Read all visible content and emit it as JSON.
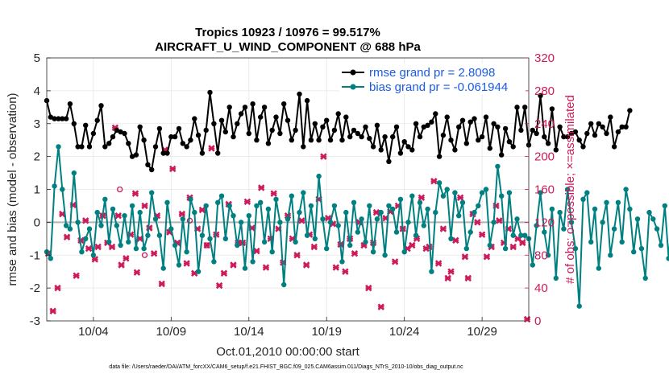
{
  "chart_data": {
    "type": "line",
    "title_line1": "Tropics 10923 / 10976 = 99.517%",
    "title_line2": "AIRCRAFT_U_WIND_COMPONENT @ 688 hPa",
    "xlabel": "Oct.01,2010 00:00:00 start",
    "ylabel_left": "rmse and bias (model - observation)",
    "ylabel_right": "# of obs: o=possible; ×=assimilated",
    "footer": "data file: /Users/raeder/DAI/ATM_forcXX/CAM6_setup/f.e21.FHIST_BGC.f09_025.CAM6assim.011/Diags_NTrS_2010-10/obs_diag_output.nc",
    "x_ticks": [
      {
        "day": 4,
        "label": "10/04"
      },
      {
        "day": 9,
        "label": "10/09"
      },
      {
        "day": 14,
        "label": "10/14"
      },
      {
        "day": 19,
        "label": "10/19"
      },
      {
        "day": 24,
        "label": "10/24"
      },
      {
        "day": 29,
        "label": "10/29"
      }
    ],
    "xlim_days": [
      1.0,
      32.0
    ],
    "ylim_left": [
      -3,
      5
    ],
    "yticks_left": [
      "-3",
      "-2",
      "-1",
      "0",
      "1",
      "2",
      "3",
      "4",
      "5"
    ],
    "ylim_right": [
      0,
      320
    ],
    "yticks_right": [
      "0",
      "40",
      "80",
      "120",
      "160",
      "200",
      "240",
      "280",
      "320"
    ],
    "legend_position": "top-right",
    "colors": {
      "rmse": "#000000",
      "bias": "#008080",
      "obs": "#cc1a5a",
      "zero": "#b3b3b3"
    },
    "series": [
      {
        "name": "rmse grand pr = 2.8098",
        "key": "rmse",
        "x_start_day": 1.0,
        "x_step_day": 0.25,
        "values": [
          3.7,
          3.2,
          3.15,
          3.15,
          3.15,
          3.15,
          3.6,
          3.0,
          2.3,
          2.3,
          2.95,
          2.3,
          2.7,
          3.1,
          3.55,
          2.3,
          2.4,
          2.6,
          2.8,
          2.75,
          2.7,
          2.4,
          2.0,
          2.05,
          2.9,
          2.5,
          1.75,
          1.6,
          2.3,
          2.85,
          2.1,
          2.1,
          2.6,
          2.6,
          2.85,
          2.4,
          2.3,
          2.5,
          3.15,
          2.65,
          2.1,
          2.8,
          3.95,
          3.0,
          2.1,
          3.1,
          2.75,
          3.5,
          2.6,
          3.0,
          3.3,
          3.5,
          2.7,
          3.6,
          2.5,
          3.2,
          3.5,
          2.4,
          2.8,
          3.2,
          2.7,
          3.6,
          3.1,
          2.5,
          2.8,
          3.9,
          2.3,
          3.7,
          2.5,
          3.0,
          2.5,
          2.9,
          3.1,
          2.5,
          2.8,
          3.3,
          2.5,
          3.2,
          2.6,
          2.8,
          2.7,
          2.6,
          2.9,
          2.55,
          2.3,
          2.95,
          2.2,
          2.6,
          1.85,
          2.6,
          2.9,
          2.1,
          2.45,
          2.3,
          2.2,
          3.0,
          2.6,
          2.9,
          2.95,
          3.05,
          3.3,
          2.0,
          2.65,
          3.2,
          2.5,
          2.2,
          2.9,
          3.1,
          2.4,
          3.05,
          3.15,
          2.5,
          2.6,
          3.2,
          2.25,
          3.0,
          2.9,
          2.05,
          2.85,
          2.45,
          2.3,
          3.5,
          2.8,
          3.5,
          2.35,
          2.8,
          2.7,
          3.85,
          2.6,
          2.4,
          3.45,
          2.2,
          2.9,
          2.6,
          2.6,
          2.7,
          2.75,
          2.5,
          2.3,
          2.7,
          3.0,
          2.65,
          3.0,
          2.9,
          2.7,
          3.2,
          2.3,
          2.75,
          2.9,
          2.9,
          3.4
        ]
      },
      {
        "name": "bias grand pr = -0.061944",
        "key": "bias",
        "x_start_day": 1.0,
        "x_step_day": 0.25,
        "values": [
          -0.9,
          -1.1,
          1.1,
          2.3,
          1.0,
          -0.1,
          -0.2,
          1.5,
          0.0,
          -0.9,
          -0.5,
          -0.2,
          -1.0,
          0.3,
          -0.1,
          0.7,
          -0.6,
          0.4,
          -0.1,
          -0.7,
          0.2,
          -0.6,
          0.5,
          -0.8,
          0.3,
          -0.8,
          -0.4,
          0.9,
          0.1,
          -0.4,
          -1.4,
          0.6,
          -0.2,
          -0.7,
          -1.3,
          0.1,
          -0.9,
          0.7,
          0.3,
          -1.5,
          -0.4,
          0.5,
          -0.5,
          -1.2,
          0.6,
          0.8,
          -0.5,
          0.5,
          0.2,
          -0.7,
          0.0,
          -1.4,
          0.2,
          -1.2,
          0.5,
          0.6,
          -0.6,
          0.4,
          -0.9,
          0.7,
          0.0,
          -1.9,
          0.1,
          0.8,
          -0.6,
          0.3,
          0.9,
          -0.4,
          0.5,
          -0.5,
          1.4,
          0.1,
          -0.8,
          0.0,
          0.5,
          -0.1,
          -1.2,
          0.3,
          -0.7,
          0.6,
          -0.3,
          0.1,
          -0.6,
          0.5,
          -0.9,
          0.1,
          0.3,
          -1.0,
          0.5,
          0.4,
          -0.3,
          0.7,
          -0.9,
          0.0,
          0.8,
          -0.4,
          0.6,
          -0.1,
          0.4,
          -1.5,
          0.3,
          1.2,
          0.8,
          1.0,
          -0.5,
          0.9,
          0.2,
          0.6,
          -0.8,
          -0.3,
          0.3,
          0.5,
          0.9,
          1.0,
          -0.7,
          0.0,
          1.7,
          0.8,
          -0.8,
          0.9,
          -0.4,
          0.1,
          -0.4,
          -0.4,
          -0.5,
          -1.3,
          -0.1,
          0.9,
          -0.3,
          -1.0,
          0.4,
          -1.7,
          0.3,
          -0.2,
          1.0,
          0.0,
          -0.8,
          -2.55,
          0.7,
          0.9,
          -0.6,
          0.4,
          -1.4,
          0.0,
          0.6,
          -1.0,
          -0.2,
          0.6,
          -0.6,
          1.0,
          0.4,
          -0.9,
          0.1,
          -0.8,
          -1.7,
          0.3,
          0.1,
          -0.2,
          -0.7,
          0.5,
          -1.1,
          0.5,
          0.7,
          -0.5,
          0.3,
          0.1,
          1.3,
          1.0,
          0.7
        ]
      }
    ],
    "obs_assimilated": [
      {
        "day": 1.1,
        "count": 82
      },
      {
        "day": 1.4,
        "count": 12
      },
      {
        "day": 1.7,
        "count": 40
      },
      {
        "day": 2.0,
        "count": 130
      },
      {
        "day": 2.3,
        "count": 102
      },
      {
        "day": 2.7,
        "count": 141
      },
      {
        "day": 2.9,
        "count": 55
      },
      {
        "day": 3.2,
        "count": 98
      },
      {
        "day": 3.5,
        "count": 122
      },
      {
        "day": 3.7,
        "count": 88
      },
      {
        "day": 4.1,
        "count": 75
      },
      {
        "day": 4.3,
        "count": 90
      },
      {
        "day": 4.6,
        "count": 128
      },
      {
        "day": 4.9,
        "count": 95
      },
      {
        "day": 5.2,
        "count": 90
      },
      {
        "day": 5.4,
        "count": 235
      },
      {
        "day": 5.6,
        "count": 128
      },
      {
        "day": 5.8,
        "count": 68
      },
      {
        "day": 6.1,
        "count": 76
      },
      {
        "day": 6.4,
        "count": 105
      },
      {
        "day": 6.7,
        "count": 155
      },
      {
        "day": 6.8,
        "count": 59
      },
      {
        "day": 7.0,
        "count": 100
      },
      {
        "day": 7.3,
        "count": 140
      },
      {
        "day": 7.6,
        "count": 113
      },
      {
        "day": 7.9,
        "count": 82
      },
      {
        "day": 8.1,
        "count": 128
      },
      {
        "day": 8.4,
        "count": 45
      },
      {
        "day": 8.6,
        "count": 208
      },
      {
        "day": 8.9,
        "count": 108
      },
      {
        "day": 9.1,
        "count": 185
      },
      {
        "day": 9.4,
        "count": 95
      },
      {
        "day": 9.7,
        "count": 130
      },
      {
        "day": 10.0,
        "count": 70
      },
      {
        "day": 10.2,
        "count": 150
      },
      {
        "day": 10.5,
        "count": 58
      },
      {
        "day": 10.7,
        "count": 112
      },
      {
        "day": 11.0,
        "count": 135
      },
      {
        "day": 11.3,
        "count": 92
      },
      {
        "day": 11.6,
        "count": 210
      },
      {
        "day": 11.9,
        "count": 105
      },
      {
        "day": 12.1,
        "count": 43
      },
      {
        "day": 12.4,
        "count": 58
      },
      {
        "day": 12.7,
        "count": 142
      },
      {
        "day": 13.0,
        "count": 68
      },
      {
        "day": 13.3,
        "count": 95
      },
      {
        "day": 13.6,
        "count": 95
      },
      {
        "day": 13.9,
        "count": 145
      },
      {
        "day": 14.2,
        "count": 113
      },
      {
        "day": 14.5,
        "count": 85
      },
      {
        "day": 14.8,
        "count": 162
      },
      {
        "day": 15.1,
        "count": 65
      },
      {
        "day": 15.4,
        "count": 100
      },
      {
        "day": 15.6,
        "count": 155
      },
      {
        "day": 15.9,
        "count": 112
      },
      {
        "day": 16.2,
        "count": 71
      },
      {
        "day": 16.5,
        "count": 128
      },
      {
        "day": 16.8,
        "count": 100
      },
      {
        "day": 17.1,
        "count": 80
      },
      {
        "day": 17.4,
        "count": 122
      },
      {
        "day": 17.7,
        "count": 68
      },
      {
        "day": 17.9,
        "count": 105
      },
      {
        "day": 18.2,
        "count": 90
      },
      {
        "day": 18.5,
        "count": 148
      },
      {
        "day": 18.8,
        "count": 200
      },
      {
        "day": 19.1,
        "count": 125
      },
      {
        "day": 19.4,
        "count": 118
      },
      {
        "day": 19.6,
        "count": 65
      },
      {
        "day": 19.9,
        "count": 93
      },
      {
        "day": 20.2,
        "count": 60
      },
      {
        "day": 20.5,
        "count": 100
      },
      {
        "day": 20.8,
        "count": 82
      },
      {
        "day": 21.1,
        "count": 120
      },
      {
        "day": 21.4,
        "count": 92
      },
      {
        "day": 21.7,
        "count": 40
      },
      {
        "day": 22.0,
        "count": 95
      },
      {
        "day": 22.2,
        "count": 132
      },
      {
        "day": 22.5,
        "count": 17
      },
      {
        "day": 22.8,
        "count": 125
      },
      {
        "day": 23.1,
        "count": 133
      },
      {
        "day": 23.4,
        "count": 72
      },
      {
        "day": 23.6,
        "count": 140
      },
      {
        "day": 23.9,
        "count": 112
      },
      {
        "day": 24.2,
        "count": 88
      },
      {
        "day": 24.5,
        "count": 92
      },
      {
        "day": 24.8,
        "count": 100
      },
      {
        "day": 25.1,
        "count": 150
      },
      {
        "day": 25.4,
        "count": 88
      },
      {
        "day": 25.6,
        "count": 90
      },
      {
        "day": 25.9,
        "count": 170
      },
      {
        "day": 26.2,
        "count": 70
      },
      {
        "day": 26.5,
        "count": 112
      },
      {
        "day": 26.8,
        "count": 52
      },
      {
        "day": 27.0,
        "count": 60
      },
      {
        "day": 27.3,
        "count": 98
      },
      {
        "day": 27.6,
        "count": 150
      },
      {
        "day": 27.9,
        "count": 78
      },
      {
        "day": 28.1,
        "count": 52
      },
      {
        "day": 28.4,
        "count": 130
      },
      {
        "day": 28.7,
        "count": 120
      },
      {
        "day": 29.0,
        "count": 105
      },
      {
        "day": 29.3,
        "count": 78
      },
      {
        "day": 29.6,
        "count": 90
      },
      {
        "day": 29.9,
        "count": 140
      },
      {
        "day": 30.1,
        "count": 122
      },
      {
        "day": 30.4,
        "count": 95
      },
      {
        "day": 30.7,
        "count": 112
      },
      {
        "day": 31.0,
        "count": 90
      },
      {
        "day": 31.3,
        "count": 100
      },
      {
        "day": 31.6,
        "count": 95
      },
      {
        "day": 31.9,
        "count": 2
      }
    ],
    "obs_possible": [
      {
        "day": 5.7,
        "count": 160
      },
      {
        "day": 7.3,
        "count": 80
      },
      {
        "day": 10.2,
        "count": 122
      },
      {
        "day": 11.3,
        "count": 92
      },
      {
        "day": 31.6,
        "count": 100
      }
    ]
  }
}
